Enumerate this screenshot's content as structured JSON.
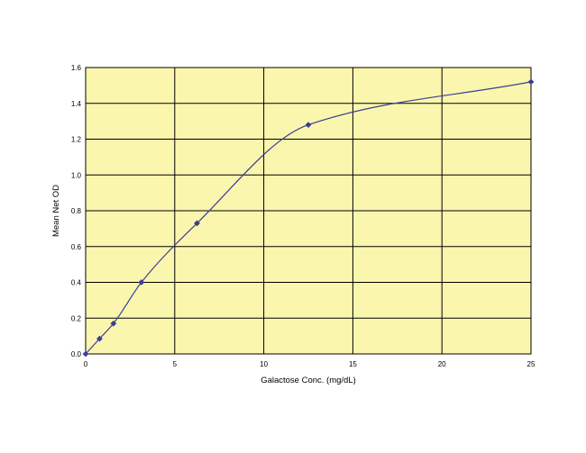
{
  "chart_data": {
    "type": "line",
    "title": "",
    "xlabel": "Galactose Conc. (mg/dL)",
    "ylabel": "Mean Net OD",
    "xlim": [
      0,
      25
    ],
    "ylim": [
      0,
      1.6
    ],
    "xticks": [
      0,
      5,
      10,
      15,
      20,
      25
    ],
    "yticks": [
      0.0,
      0.2,
      0.4,
      0.6,
      0.8,
      1.0,
      1.2,
      1.4,
      1.6
    ],
    "xtick_labels": [
      "0",
      "5",
      "10",
      "15",
      "20",
      "25"
    ],
    "ytick_labels": [
      "0.0",
      "0.2",
      "0.4",
      "0.6",
      "0.8",
      "1.0",
      "1.2",
      "1.4",
      "1.6"
    ],
    "grid": true,
    "legend": "none",
    "series": [
      {
        "x": [
          0,
          0.78,
          1.56,
          3.13,
          6.25,
          12.5,
          25
        ],
        "y": [
          0.0,
          0.085,
          0.17,
          0.4,
          0.73,
          1.28,
          1.52
        ]
      }
    ],
    "colors": {
      "plot_background": "#fbf6ae",
      "grid": "#000000",
      "line": "#3a3f96",
      "marker": "#3a3f96"
    }
  }
}
